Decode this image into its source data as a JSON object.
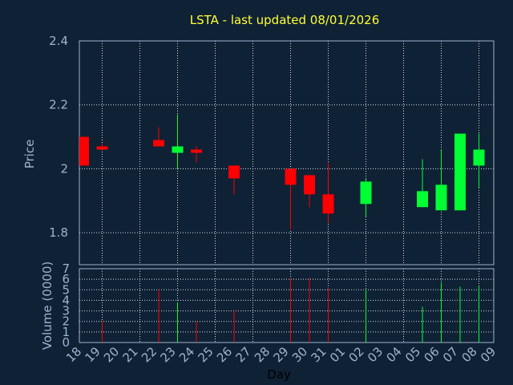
{
  "chart_data": {
    "type": "candlestick",
    "title": "LSTA - last updated 08/01/2026",
    "price_panel": {
      "ylabel": "Price",
      "ylim": [
        1.7,
        2.4
      ],
      "yticks": [
        1.8,
        2,
        2.2,
        2.4
      ],
      "ytick_labels": [
        "1.8",
        "2",
        "2.2",
        "2.4"
      ],
      "grid": true
    },
    "volume_panel": {
      "ylabel": "Volume (0000)",
      "ylim": [
        0,
        7
      ],
      "yticks": [
        0,
        1,
        2,
        3,
        4,
        5,
        6,
        7
      ],
      "ytick_labels": [
        "0",
        "1",
        "2",
        "3",
        "4",
        "5",
        "6",
        "7"
      ],
      "grid": true
    },
    "xlabel": "Day",
    "x_ticks": [
      "18",
      "19",
      "20",
      "21",
      "22",
      "23",
      "24",
      "25",
      "26",
      "27",
      "28",
      "29",
      "30",
      "31",
      "01",
      "02",
      "03",
      "04",
      "05",
      "06",
      "07",
      "08",
      "09"
    ],
    "bull_color": "#00ff33",
    "bear_color": "#ff0000",
    "candles": [
      {
        "day": "18",
        "open": 2.1,
        "high": 2.1,
        "low": 2.01,
        "close": 2.01,
        "volume": 0
      },
      {
        "day": "19",
        "open": 2.07,
        "high": 2.08,
        "low": 2.06,
        "close": 2.06,
        "volume": 2.0
      },
      {
        "day": "22",
        "open": 2.09,
        "high": 2.13,
        "low": 2.07,
        "close": 2.07,
        "volume": 5.0
      },
      {
        "day": "23",
        "open": 2.05,
        "high": 2.17,
        "low": 2.0,
        "close": 2.07,
        "volume": 3.8
      },
      {
        "day": "24",
        "open": 2.06,
        "high": 2.07,
        "low": 2.02,
        "close": 2.05,
        "volume": 2.0
      },
      {
        "day": "26",
        "open": 2.01,
        "high": 2.01,
        "low": 1.92,
        "close": 1.97,
        "volume": 3.0
      },
      {
        "day": "29",
        "open": 2.0,
        "high": 2.0,
        "low": 1.81,
        "close": 1.95,
        "volume": 6.1
      },
      {
        "day": "30",
        "open": 1.98,
        "high": 1.98,
        "low": 1.88,
        "close": 1.92,
        "volume": 6.1
      },
      {
        "day": "31",
        "open": 1.92,
        "high": 2.02,
        "low": 1.83,
        "close": 1.86,
        "volume": 5.2
      },
      {
        "day": "02",
        "open": 1.89,
        "high": 1.97,
        "low": 1.85,
        "close": 1.96,
        "volume": 5.0
      },
      {
        "day": "05",
        "open": 1.88,
        "high": 2.03,
        "low": 1.88,
        "close": 1.93,
        "volume": 3.4
      },
      {
        "day": "06",
        "open": 1.87,
        "high": 2.06,
        "low": 1.87,
        "close": 1.95,
        "volume": 5.7
      },
      {
        "day": "07",
        "open": 1.87,
        "high": 2.11,
        "low": 1.87,
        "close": 2.11,
        "volume": 5.3
      },
      {
        "day": "08",
        "open": 2.01,
        "high": 2.11,
        "low": 1.94,
        "close": 2.06,
        "volume": 5.3
      }
    ]
  }
}
